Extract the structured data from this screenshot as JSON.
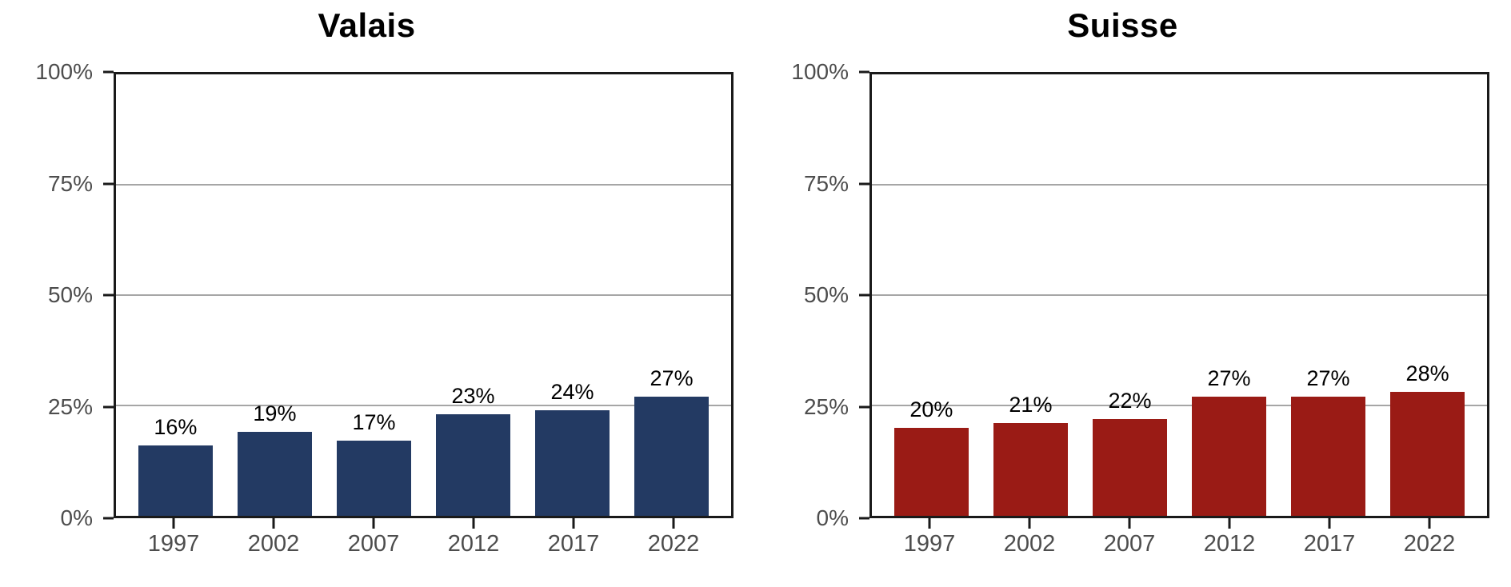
{
  "figure": {
    "background": "#FFFFFF"
  },
  "colors": {
    "valais_bar": "#233A63",
    "suisse_bar": "#9A1B15",
    "gridline": "#A6A6A6",
    "panel_border": "#1A1A1A",
    "axis_text": "#4D4D4D",
    "value_label_text": "#000000",
    "title_text": "#000000"
  },
  "chart_data": [
    {
      "type": "bar",
      "title": "Valais",
      "categories": [
        "1997",
        "2002",
        "2007",
        "2012",
        "2017",
        "2022"
      ],
      "values": [
        16,
        19,
        17,
        23,
        24,
        27
      ],
      "value_labels": [
        "16%",
        "19%",
        "17%",
        "23%",
        "24%",
        "27%"
      ],
      "bar_color": "#233A63",
      "xlabel": "",
      "ylabel": "",
      "ylim": [
        0,
        100
      ],
      "yticks": [
        0,
        25,
        50,
        75,
        100
      ],
      "ytick_labels": [
        "0%",
        "25%",
        "50%",
        "75%",
        "100%"
      ],
      "grid_levels": [
        25,
        50,
        75
      ],
      "grid": true,
      "legend": "none"
    },
    {
      "type": "bar",
      "title": "Suisse",
      "categories": [
        "1997",
        "2002",
        "2007",
        "2012",
        "2017",
        "2022"
      ],
      "values": [
        20,
        21,
        22,
        27,
        27,
        28
      ],
      "value_labels": [
        "20%",
        "21%",
        "22%",
        "27%",
        "27%",
        "28%"
      ],
      "bar_color": "#9A1B15",
      "xlabel": "",
      "ylabel": "",
      "ylim": [
        0,
        100
      ],
      "yticks": [
        0,
        25,
        50,
        75,
        100
      ],
      "ytick_labels": [
        "0%",
        "25%",
        "50%",
        "75%",
        "100%"
      ],
      "grid_levels": [
        25,
        50,
        75
      ],
      "grid": true,
      "legend": "none"
    }
  ]
}
